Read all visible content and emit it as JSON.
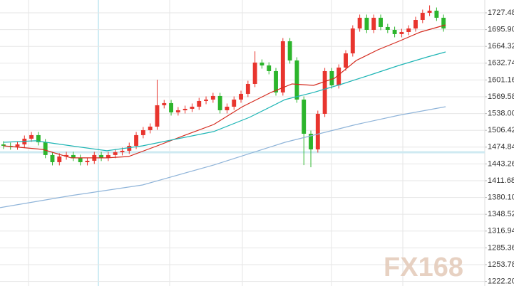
{
  "chart_data": {
    "type": "candlestick",
    "watermark": "FX168",
    "up_color": "#e8352e",
    "down_color": "#2cb52c",
    "xlim": [
      -0.5,
      68.9
    ],
    "ylim": [
      1213.6,
      1751.6
    ],
    "grid": true,
    "yticks": [
      {
        "value": 1727.48,
        "label": "1727.48"
      },
      {
        "value": 1695.9,
        "label": "1695.90"
      },
      {
        "value": 1664.32,
        "label": "1664.32"
      },
      {
        "value": 1632.74,
        "label": "1632.74"
      },
      {
        "value": 1601.16,
        "label": "1601.16"
      },
      {
        "value": 1569.58,
        "label": "1569.58"
      },
      {
        "value": 1538.0,
        "label": "1538.00"
      },
      {
        "value": 1506.42,
        "label": "1506.42"
      },
      {
        "value": 1474.84,
        "label": "1474.84"
      },
      {
        "value": 1443.26,
        "label": "1443.26"
      },
      {
        "value": 1411.68,
        "label": "1411.68"
      },
      {
        "value": 1380.1,
        "label": "1380.10"
      },
      {
        "value": 1348.52,
        "label": "1348.52"
      },
      {
        "value": 1316.94,
        "label": "1316.94"
      },
      {
        "value": 1285.36,
        "label": "1285.36"
      },
      {
        "value": 1253.78,
        "label": "1253.78"
      },
      {
        "value": 1222.2,
        "label": "1222.20"
      }
    ],
    "open": [
      1480,
      1477.3,
      1476,
      1480,
      1490.7,
      1497.4,
      1484,
      1460,
      1446.5,
      1457.2,
      1460,
      1454.6,
      1446.5,
      1449.2,
      1460,
      1454.6,
      1460,
      1465.3,
      1468,
      1477.3,
      1497.4,
      1506.7,
      1513.4,
      1553.6,
      1557.6,
      1540.2,
      1544.2,
      1546.9,
      1550.9,
      1561.6,
      1564.3,
      1571,
      1544.2,
      1550.9,
      1564.3,
      1575,
      1593.7,
      1633.9,
      1628.5,
      1617.8,
      1577.7,
      1674,
      1637.9,
      1564.3,
      1500,
      1470.6,
      1537.5,
      1617.8,
      1591,
      1624.5,
      1651.2,
      1698,
      1718.2,
      1695.4,
      1718.2,
      1700.8,
      1695.4,
      1687.4,
      1691.4,
      1698,
      1714.1,
      1727.5,
      1731.5,
      1718.2
    ],
    "high": [
      1486,
      1483.3,
      1486,
      1496.7,
      1503.4,
      1503.4,
      1490,
      1466,
      1463.2,
      1466,
      1466,
      1460.6,
      1455.2,
      1466,
      1466,
      1466,
      1471.3,
      1474,
      1483.3,
      1503.4,
      1512.7,
      1519.4,
      1601.7,
      1563.6,
      1563.6,
      1550.2,
      1552.9,
      1556.9,
      1567.6,
      1570.3,
      1577,
      1577,
      1556.9,
      1570.3,
      1581,
      1599.7,
      1655,
      1639.9,
      1634.5,
      1623.8,
      1680,
      1680,
      1643.9,
      1570.3,
      1506,
      1543.5,
      1623.8,
      1623.8,
      1630.5,
      1657.2,
      1704,
      1724.2,
      1724.2,
      1724.2,
      1724.2,
      1706.8,
      1701.4,
      1697.4,
      1704,
      1720.1,
      1733.5,
      1741.5,
      1737.5,
      1724.2
    ],
    "low": [
      1471.3,
      1470,
      1470,
      1474,
      1484.7,
      1478,
      1454,
      1440.5,
      1440.5,
      1451.2,
      1448.6,
      1440.5,
      1440.5,
      1443.2,
      1448.6,
      1448.6,
      1454,
      1459.3,
      1462,
      1471.3,
      1491.4,
      1500.7,
      1507.4,
      1547.6,
      1534.2,
      1534.2,
      1538.2,
      1540.9,
      1544.9,
      1555.6,
      1558.3,
      1538.2,
      1538.2,
      1544.9,
      1558.3,
      1569,
      1587.7,
      1622.5,
      1611.8,
      1571.7,
      1571.7,
      1631.9,
      1558.3,
      1441,
      1437,
      1464.6,
      1531.5,
      1585,
      1585,
      1618.5,
      1645.2,
      1692,
      1689.4,
      1689.4,
      1694.8,
      1689.4,
      1681.4,
      1681.4,
      1685.4,
      1692,
      1708.1,
      1721.5,
      1712.2,
      1692
    ],
    "close": [
      1477.3,
      1476,
      1480,
      1490.7,
      1497.4,
      1484,
      1460,
      1446.5,
      1457.2,
      1460,
      1454.6,
      1446.5,
      1449.2,
      1460,
      1454.6,
      1460,
      1465.3,
      1468,
      1477.3,
      1497.4,
      1506.7,
      1513.4,
      1553.6,
      1557.6,
      1540.2,
      1544.2,
      1546.9,
      1550.9,
      1561.6,
      1564.3,
      1571,
      1544.2,
      1550.9,
      1564.3,
      1575,
      1593.7,
      1633.9,
      1628.5,
      1617.8,
      1577.7,
      1674,
      1637.9,
      1564.3,
      1500,
      1470.6,
      1537.5,
      1617.8,
      1591,
      1624.5,
      1651.2,
      1698,
      1718.2,
      1695.4,
      1718.2,
      1700.8,
      1695.4,
      1687.4,
      1691.4,
      1698,
      1714.1,
      1727.5,
      1731.5,
      1718.2,
      1698
    ],
    "series": [
      {
        "color": "#d42a1e",
        "x": [
          0,
          5.6,
          9.7,
          14.8,
          17.9,
          22,
          26,
          30.1,
          34.2,
          38.3,
          41.3,
          44.4,
          47.4,
          50.5,
          53.6,
          56.6,
          59.7,
          63.3
        ],
        "values": [
          1477.3,
          1470.6,
          1454.6,
          1454.6,
          1457.2,
          1477.3,
          1497.4,
          1517.4,
          1550.9,
          1577.7,
          1593.7,
          1591,
          1604.4,
          1637.9,
          1657.9,
          1674,
          1691.4,
          1704.8
        ]
      },
      {
        "color": "#1fb5b5",
        "x": [
          0,
          4.6,
          9.7,
          14.8,
          19.9,
          25,
          30.1,
          35.2,
          40.3,
          44.4,
          48.5,
          52.6,
          56.6,
          60.7,
          63.3
        ],
        "values": [
          1484,
          1486.7,
          1477.3,
          1468,
          1477.3,
          1490.7,
          1504.1,
          1530.8,
          1564.3,
          1577.7,
          1593.7,
          1611.1,
          1628.5,
          1644.6,
          1653.9
        ]
      },
      {
        "color": "#8fb4d9",
        "x": [
          -0.5,
          9.7,
          19.9,
          30.1,
          40.3,
          50.5,
          56.6,
          63.3
        ],
        "values": [
          1360.9,
          1383.7,
          1403.7,
          1441.2,
          1484,
          1517.4,
          1534.8,
          1550.9
        ]
      }
    ]
  }
}
